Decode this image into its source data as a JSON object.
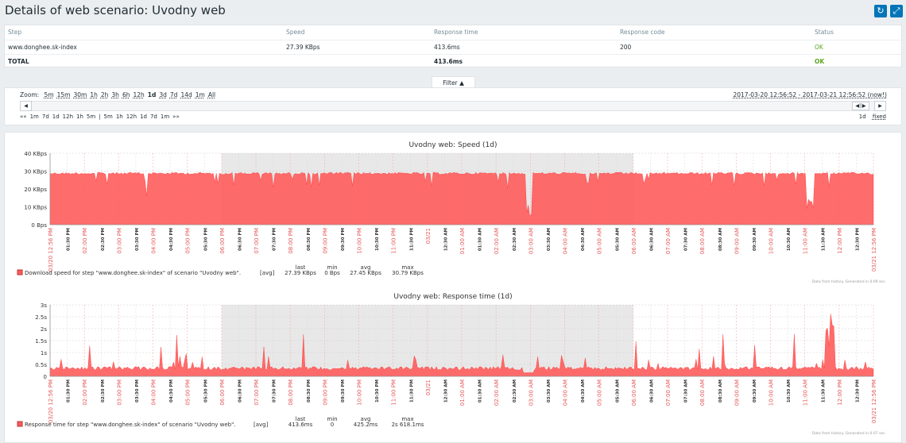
{
  "header": {
    "title": "Details of web scenario: Uvodny web",
    "refresh_icon": "refresh-icon",
    "fullscreen_icon": "fullscreen-icon"
  },
  "steps_table": {
    "columns": [
      "Step",
      "Speed",
      "Response time",
      "Response code",
      "Status"
    ],
    "rows": [
      {
        "step": "www.donghee.sk-index",
        "speed": "27.39 KBps",
        "response_time": "413.6ms",
        "response_code": "200",
        "status": "OK"
      }
    ],
    "total": {
      "step": "TOTAL",
      "response_time": "413.6ms",
      "status": "OK"
    }
  },
  "filter": {
    "tab_label": "Filter ▲",
    "zoom_label": "Zoom:",
    "zoom_options": [
      "5m",
      "15m",
      "30m",
      "1h",
      "2h",
      "3h",
      "6h",
      "12h",
      "1d",
      "3d",
      "7d",
      "14d",
      "1m",
      "All"
    ],
    "zoom_active": "1d",
    "date_range": "2017-03-20 12:56:52 - 2017-03-21 12:56:52 (now!)",
    "period_back": [
      "««",
      "1m",
      "7d",
      "1d",
      "12h",
      "1h",
      "5m",
      "|",
      "5m",
      "1h",
      "12h",
      "1d",
      "7d",
      "1m",
      "»»"
    ],
    "period_current": "1d",
    "period_mode": "fixed"
  },
  "colors": {
    "accent": "#0275b8",
    "graph_fill": "#ff5c5c",
    "ok": "#59a820",
    "red_label": "#e45959"
  },
  "chart_data": [
    {
      "type": "area",
      "title": "Uvodny web: Speed (1d)",
      "y_ticks": [
        "40 KBps",
        "30 KBps",
        "20 KBps",
        "10 KBps",
        "0 Bps"
      ],
      "ylim": [
        0,
        40
      ],
      "x_ticks": [
        "03/20 12:56 PM",
        "01:30 PM",
        "02:00 PM",
        "02:30 PM",
        "03:00 PM",
        "03:30 PM",
        "04:00 PM",
        "04:30 PM",
        "05:00 PM",
        "05:30 PM",
        "06:00 PM",
        "06:30 PM",
        "07:00 PM",
        "07:30 PM",
        "08:00 PM",
        "08:30 PM",
        "09:00 PM",
        "09:30 PM",
        "10:00 PM",
        "10:30 PM",
        "11:00 PM",
        "11:30 PM",
        "03/21",
        "12:30 AM",
        "01:00 AM",
        "01:30 AM",
        "02:00 AM",
        "02:30 AM",
        "03:00 AM",
        "03:30 AM",
        "04:00 AM",
        "04:30 AM",
        "05:00 AM",
        "05:30 AM",
        "06:00 AM",
        "06:30 AM",
        "07:00 AM",
        "07:30 AM",
        "08:00 AM",
        "08:30 AM",
        "09:00 AM",
        "09:30 AM",
        "10:00 AM",
        "10:30 AM",
        "11:00 AM",
        "11:30 AM",
        "12:00 PM",
        "12:30 PM",
        "03/21 12:56 PM"
      ],
      "red_ticks": [
        "03/20 12:56 PM",
        "02:00 PM",
        "03:00 PM",
        "04:00 PM",
        "05:00 PM",
        "06:00 PM",
        "07:00 PM",
        "08:00 PM",
        "09:00 PM",
        "10:00 PM",
        "11:00 PM",
        "03/21",
        "01:00 AM",
        "02:00 AM",
        "03:00 AM",
        "04:00 AM",
        "05:00 AM",
        "06:00 AM",
        "07:00 AM",
        "08:00 AM",
        "09:00 AM",
        "10:00 AM",
        "11:00 AM",
        "12:00 PM",
        "03/21 12:56 PM"
      ],
      "series": [
        {
          "name": "Download speed for step \"www.donghee.sk-index\" of scenario \"Uvodny web\".",
          "baseline": 29.3,
          "unit": "KBps"
        }
      ],
      "legend_func": "[avg]",
      "legend_headers": [
        "last",
        "min",
        "avg",
        "max"
      ],
      "legend_values": [
        "27.39 KBps",
        "0 Bps",
        "27.45 KBps",
        "30.79 KBps"
      ],
      "footer": "Data from history. Generated in 0.09 sec."
    },
    {
      "type": "area",
      "title": "Uvodny web: Response time (1d)",
      "y_ticks": [
        "3s",
        "2.5s",
        "2s",
        "1.5s",
        "1s",
        "0.5s",
        "0"
      ],
      "ylim": [
        0,
        3
      ],
      "series": [
        {
          "name": "Response time for step \"www.donghee.sk-index\" of scenario \"Uvodny web\".",
          "baseline": 0.41,
          "unit": "s"
        }
      ],
      "legend_func": "[avg]",
      "legend_headers": [
        "last",
        "min",
        "avg",
        "max"
      ],
      "legend_values": [
        "413.6ms",
        "0",
        "425.2ms",
        "2s 618.1ms"
      ],
      "footer": "Data from history. Generated in 0.07 sec."
    }
  ]
}
